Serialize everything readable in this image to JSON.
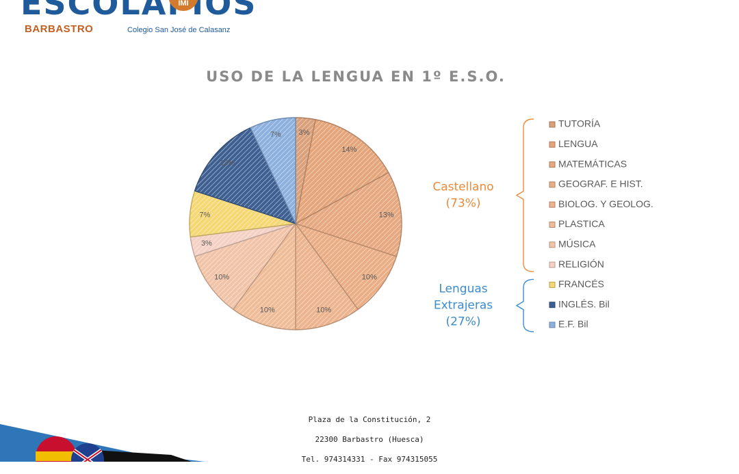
{
  "logo": {
    "word": "ESCOLAPIOS",
    "badge": "IMI",
    "city": "BARBASTRO",
    "subtitle": "Colegio San José de Calasanz"
  },
  "chart_data": {
    "type": "pie",
    "title": "USO DE LA LENGUA EN 1º E.S.O.",
    "slices": [
      {
        "label": "TUTORÍA",
        "value": 3,
        "display": "3%",
        "color": "#d9a07a"
      },
      {
        "label": "LENGUA",
        "value": 14,
        "display": "14%",
        "color": "#e4a57b"
      },
      {
        "label": "MATEMÁTICAS",
        "value": 13,
        "display": "13%",
        "color": "#e5a880"
      },
      {
        "label": "GEOGRAF. E HIST.",
        "value": 10,
        "display": "10%",
        "color": "#eaae86"
      },
      {
        "label": "BIOLOG. Y GEOLOG.",
        "value": 10,
        "display": "10%",
        "color": "#ecb48e"
      },
      {
        "label": "PLASTICA",
        "value": 10,
        "display": "10%",
        "color": "#efbc98"
      },
      {
        "label": "MÚSICA",
        "value": 10,
        "display": "10%",
        "color": "#f1c4a8"
      },
      {
        "label": "RELIGIÓN",
        "value": 3,
        "display": "3%",
        "color": "#f4d1c4"
      },
      {
        "label": "FRANCÉS",
        "value": 7,
        "display": "7%",
        "color": "#f5d774"
      },
      {
        "label": "INGLÉS. Bil",
        "value": 13,
        "display": "13%",
        "color": "#3e5f92"
      },
      {
        "label": "E.F. Bil",
        "value": 7,
        "display": "7%",
        "color": "#8db1df"
      }
    ],
    "legend_placement": "right",
    "groups": [
      {
        "label_lines": [
          "Castellano",
          "(73%)"
        ],
        "color": "#ee8a3b",
        "from": 0,
        "to": 7
      },
      {
        "label_lines": [
          "Lenguas",
          "Extrajeras",
          "(27%)"
        ],
        "color": "#3b8bd0",
        "from": 8,
        "to": 10
      }
    ]
  },
  "footer": {
    "address": "Plaza de la Constitución, 2",
    "city": "22300 Barbastro (Huesca)",
    "phone": "Tel. 974314331 - Fax 974315055"
  }
}
